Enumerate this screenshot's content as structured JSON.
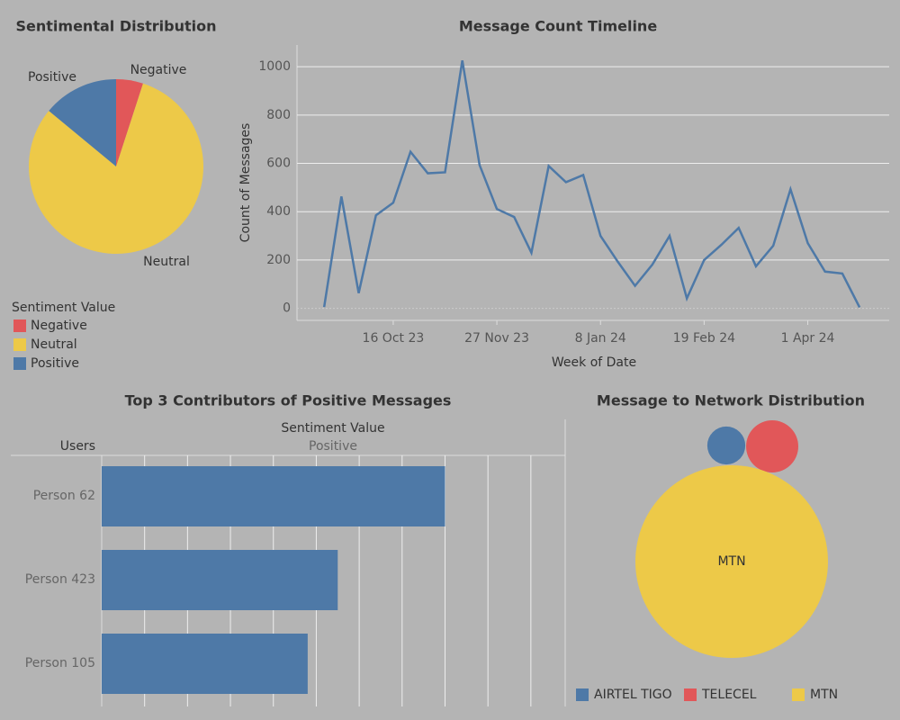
{
  "chart_data": [
    {
      "type": "pie",
      "title": "Sentimental Distribution",
      "legend_title": "Sentiment Value",
      "categories": [
        "Negative",
        "Neutral",
        "Positive"
      ],
      "values": [
        5,
        81,
        14
      ],
      "colors": [
        "#e15759",
        "#edc948",
        "#4e79a7"
      ],
      "legend": "bottom-left"
    },
    {
      "type": "line",
      "title": "Message Count Timeline",
      "xlabel": "Week of Date",
      "ylabel": "Count of Messages",
      "x": [
        "2023-09-18",
        "2023-09-25",
        "2023-10-02",
        "2023-10-09",
        "2023-10-16",
        "2023-10-23",
        "2023-10-30",
        "2023-11-06",
        "2023-11-13",
        "2023-11-20",
        "2023-11-27",
        "2023-12-04",
        "2023-12-11",
        "2023-12-18",
        "2023-12-25",
        "2024-01-01",
        "2024-01-08",
        "2024-01-15",
        "2024-01-22",
        "2024-01-29",
        "2024-02-05",
        "2024-02-12",
        "2024-02-19",
        "2024-02-26",
        "2024-03-04",
        "2024-03-11",
        "2024-03-18",
        "2024-03-25",
        "2024-04-01",
        "2024-04-08",
        "2024-04-15",
        "2024-04-22"
      ],
      "series": [
        {
          "name": "Count of Messages",
          "color": "#4e79a7",
          "values": [
            5,
            463,
            63,
            385,
            437,
            648,
            559,
            563,
            1026,
            593,
            411,
            378,
            230,
            589,
            522,
            552,
            300,
            193,
            93,
            181,
            300,
            41,
            200,
            263,
            333,
            174,
            259,
            493,
            270,
            152,
            144,
            4
          ]
        }
      ],
      "xlim": [
        "2023-09-07",
        "2024-05-04"
      ],
      "xticks": [
        {
          "value": "2023-10-16",
          "label": "16 Oct 23"
        },
        {
          "value": "2023-11-27",
          "label": "27 Nov 23"
        },
        {
          "value": "2024-01-08",
          "label": "8 Jan 24"
        },
        {
          "value": "2024-02-19",
          "label": "19 Feb 24"
        },
        {
          "value": "2024-04-01",
          "label": "1 Apr 24"
        }
      ],
      "ylim": [
        -50,
        1090
      ],
      "yticks": [
        0,
        200,
        400,
        600,
        800,
        1000
      ],
      "grid": true
    },
    {
      "type": "hbar",
      "title": "Top 3 Contributors of Positive Messages",
      "row_header": "Users",
      "column_header": "Sentiment Value",
      "column": "Positive",
      "categories": [
        "Person 62",
        "Person 423",
        "Person 105"
      ],
      "values": [
        40,
        27.5,
        24
      ],
      "color": "#4e79a7",
      "xlim": [
        0,
        54
      ],
      "xticks": [
        5,
        10,
        15,
        20,
        25,
        30,
        35,
        40,
        45,
        50
      ],
      "grid": true
    },
    {
      "type": "bubble",
      "title": "Message to Network Distribution",
      "categories": [
        "AIRTEL TIGO",
        "TELECEL",
        "MTN"
      ],
      "values": [
        3.5,
        6.6,
        89.9
      ],
      "colors": [
        "#4e79a7",
        "#e15759",
        "#edc948"
      ],
      "legend": "bottom"
    }
  ]
}
